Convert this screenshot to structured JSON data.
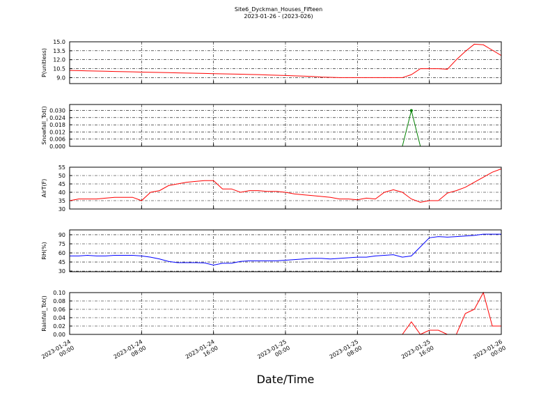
{
  "title": "Site6_Dyckman_Houses_Fifteen",
  "subtitle": "2023-01-26 - (2023-026)",
  "xlabel": "Date/Time",
  "chart_data": [
    {
      "type": "line",
      "ylabel": "P(unitless)",
      "color": "#ff0000",
      "x": [
        "2023-01-24 00:00",
        "2023-01-24 01:00",
        "2023-01-24 02:00",
        "2023-01-24 03:00",
        "2023-01-24 04:00",
        "2023-01-24 05:00",
        "2023-01-24 06:00",
        "2023-01-24 07:00",
        "2023-01-24 08:00",
        "2023-01-24 09:00",
        "2023-01-24 10:00",
        "2023-01-24 11:00",
        "2023-01-24 12:00",
        "2023-01-24 13:00",
        "2023-01-24 14:00",
        "2023-01-24 15:00",
        "2023-01-24 16:00",
        "2023-01-24 17:00",
        "2023-01-24 18:00",
        "2023-01-24 19:00",
        "2023-01-24 20:00",
        "2023-01-24 21:00",
        "2023-01-24 22:00",
        "2023-01-24 23:00",
        "2023-01-25 00:00",
        "2023-01-25 01:00",
        "2023-01-25 02:00",
        "2023-01-25 03:00",
        "2023-01-25 04:00",
        "2023-01-25 05:00",
        "2023-01-25 06:00",
        "2023-01-25 07:00",
        "2023-01-25 08:00",
        "2023-01-25 09:00",
        "2023-01-25 10:00",
        "2023-01-25 11:00",
        "2023-01-25 12:00",
        "2023-01-25 13:00",
        "2023-01-25 14:00",
        "2023-01-25 15:00",
        "2023-01-25 16:00",
        "2023-01-25 17:00",
        "2023-01-25 18:00",
        "2023-01-25 19:00",
        "2023-01-25 20:00",
        "2023-01-25 21:00",
        "2023-01-25 22:00",
        "2023-01-25 23:00",
        "2023-01-26 00:00"
      ],
      "values": [
        10.2,
        10.17,
        10.13,
        10.1,
        10.07,
        10.03,
        10.0,
        9.97,
        9.93,
        9.9,
        9.87,
        9.83,
        9.8,
        9.77,
        9.73,
        9.7,
        9.67,
        9.63,
        9.6,
        9.57,
        9.53,
        9.5,
        9.45,
        9.4,
        9.35,
        9.3,
        9.25,
        9.2,
        9.1,
        9.05,
        9.0,
        9.0,
        9.0,
        9.0,
        9.0,
        9.0,
        9.0,
        9.0,
        9.5,
        10.5,
        10.5,
        10.5,
        10.4,
        12.0,
        13.4,
        14.6,
        14.5,
        13.6,
        12.7
      ],
      "ylim": [
        8,
        15
      ],
      "yticks": [
        {
          "value": 9,
          "label": "9.0"
        },
        10.5,
        {
          "value": 12,
          "label": "12.0"
        },
        13.5,
        {
          "value": 15,
          "label": "15.0"
        }
      ],
      "xticks": [
        "2023-01-24 00:00",
        "2023-01-24 08:00",
        "2023-01-24 16:00",
        "2023-01-25 00:00",
        "2023-01-25 08:00",
        "2023-01-25 16:00",
        "2023-01-26 00:00"
      ],
      "grid": true
    },
    {
      "type": "line",
      "ylabel": "Snowfall_Tot()",
      "color": "#008000",
      "markers": true,
      "x": [
        "2023-01-24 00:00",
        "2023-01-24 01:00",
        "2023-01-24 02:00",
        "2023-01-24 03:00",
        "2023-01-24 04:00",
        "2023-01-24 05:00",
        "2023-01-24 06:00",
        "2023-01-24 07:00",
        "2023-01-24 08:00",
        "2023-01-24 09:00",
        "2023-01-24 10:00",
        "2023-01-24 11:00",
        "2023-01-24 12:00",
        "2023-01-24 13:00",
        "2023-01-24 14:00",
        "2023-01-24 15:00",
        "2023-01-24 16:00",
        "2023-01-24 17:00",
        "2023-01-24 18:00",
        "2023-01-24 19:00",
        "2023-01-24 20:00",
        "2023-01-24 21:00",
        "2023-01-24 22:00",
        "2023-01-24 23:00",
        "2023-01-25 00:00",
        "2023-01-25 01:00",
        "2023-01-25 02:00",
        "2023-01-25 03:00",
        "2023-01-25 04:00",
        "2023-01-25 05:00",
        "2023-01-25 06:00",
        "2023-01-25 07:00",
        "2023-01-25 08:00",
        "2023-01-25 09:00",
        "2023-01-25 10:00",
        "2023-01-25 11:00",
        "2023-01-25 12:00",
        "2023-01-25 13:00",
        "2023-01-25 14:00",
        "2023-01-25 15:00",
        "2023-01-25 16:00",
        "2023-01-25 17:00",
        "2023-01-25 18:00",
        "2023-01-25 19:00",
        "2023-01-25 20:00",
        "2023-01-25 21:00",
        "2023-01-25 22:00",
        "2023-01-25 23:00",
        "2023-01-26 00:00"
      ],
      "values": [
        0,
        0,
        0,
        0,
        0,
        0,
        0,
        0,
        0,
        0,
        0,
        0,
        0,
        0,
        0,
        0,
        0,
        0,
        0,
        0,
        0,
        0,
        0,
        0,
        0,
        0,
        0,
        0,
        0,
        0,
        0,
        0,
        0,
        0,
        0,
        0,
        0,
        0,
        0.03,
        0,
        0,
        0,
        0,
        0,
        0,
        0,
        0,
        0,
        0
      ],
      "ylim": [
        0,
        0.035
      ],
      "yticks": [
        {
          "value": 0,
          "label": "0.000"
        },
        {
          "value": 0.006,
          "label": "0.006"
        },
        {
          "value": 0.012,
          "label": "0.012"
        },
        {
          "value": 0.018,
          "label": "0.018"
        },
        {
          "value": 0.024,
          "label": "0.024"
        },
        {
          "value": 0.03,
          "label": "0.030"
        }
      ],
      "xticks": [
        "2023-01-24 00:00",
        "2023-01-24 08:00",
        "2023-01-24 16:00",
        "2023-01-25 00:00",
        "2023-01-25 08:00",
        "2023-01-25 16:00",
        "2023-01-26 00:00"
      ],
      "grid": true
    },
    {
      "type": "line",
      "ylabel": "AirT(F)",
      "color": "#ff0000",
      "x": [
        "2023-01-24 00:00",
        "2023-01-24 01:00",
        "2023-01-24 02:00",
        "2023-01-24 03:00",
        "2023-01-24 04:00",
        "2023-01-24 05:00",
        "2023-01-24 06:00",
        "2023-01-24 07:00",
        "2023-01-24 08:00",
        "2023-01-24 09:00",
        "2023-01-24 10:00",
        "2023-01-24 11:00",
        "2023-01-24 12:00",
        "2023-01-24 13:00",
        "2023-01-24 14:00",
        "2023-01-24 15:00",
        "2023-01-24 16:00",
        "2023-01-24 17:00",
        "2023-01-24 18:00",
        "2023-01-24 19:00",
        "2023-01-24 20:00",
        "2023-01-24 21:00",
        "2023-01-24 22:00",
        "2023-01-24 23:00",
        "2023-01-25 00:00",
        "2023-01-25 01:00",
        "2023-01-25 02:00",
        "2023-01-25 03:00",
        "2023-01-25 04:00",
        "2023-01-25 05:00",
        "2023-01-25 06:00",
        "2023-01-25 07:00",
        "2023-01-25 08:00",
        "2023-01-25 09:00",
        "2023-01-25 10:00",
        "2023-01-25 11:00",
        "2023-01-25 12:00",
        "2023-01-25 13:00",
        "2023-01-25 14:00",
        "2023-01-25 15:00",
        "2023-01-25 16:00",
        "2023-01-25 17:00",
        "2023-01-25 18:00",
        "2023-01-25 19:00",
        "2023-01-25 20:00",
        "2023-01-25 21:00",
        "2023-01-25 22:00",
        "2023-01-25 23:00",
        "2023-01-26 00:00"
      ],
      "values": [
        35,
        36,
        36,
        36,
        36.5,
        37,
        37,
        37,
        35,
        40,
        41,
        44,
        45,
        46,
        46.5,
        47,
        47,
        42,
        42,
        40,
        41,
        41,
        40.5,
        40.5,
        40,
        39,
        38.5,
        38,
        37.5,
        37,
        36,
        36,
        35.5,
        36.5,
        36,
        40,
        41.5,
        40,
        36,
        34,
        35,
        35,
        39.5,
        41,
        43,
        46,
        49,
        52,
        54
      ],
      "ylim": [
        30,
        55
      ],
      "yticks": [
        30,
        35,
        40,
        45,
        50,
        55
      ],
      "xticks": [
        "2023-01-24 00:00",
        "2023-01-24 08:00",
        "2023-01-24 16:00",
        "2023-01-25 00:00",
        "2023-01-25 08:00",
        "2023-01-25 16:00",
        "2023-01-26 00:00"
      ],
      "grid": true
    },
    {
      "type": "line",
      "ylabel": "RH(%)",
      "color": "#0000ff",
      "x": [
        "2023-01-24 00:00",
        "2023-01-24 01:00",
        "2023-01-24 02:00",
        "2023-01-24 03:00",
        "2023-01-24 04:00",
        "2023-01-24 05:00",
        "2023-01-24 06:00",
        "2023-01-24 07:00",
        "2023-01-24 08:00",
        "2023-01-24 09:00",
        "2023-01-24 10:00",
        "2023-01-24 11:00",
        "2023-01-24 12:00",
        "2023-01-24 13:00",
        "2023-01-24 14:00",
        "2023-01-24 15:00",
        "2023-01-24 16:00",
        "2023-01-24 17:00",
        "2023-01-24 18:00",
        "2023-01-24 19:00",
        "2023-01-24 20:00",
        "2023-01-24 21:00",
        "2023-01-24 22:00",
        "2023-01-24 23:00",
        "2023-01-25 00:00",
        "2023-01-25 01:00",
        "2023-01-25 02:00",
        "2023-01-25 03:00",
        "2023-01-25 04:00",
        "2023-01-25 05:00",
        "2023-01-25 06:00",
        "2023-01-25 07:00",
        "2023-01-25 08:00",
        "2023-01-25 09:00",
        "2023-01-25 10:00",
        "2023-01-25 11:00",
        "2023-01-25 12:00",
        "2023-01-25 13:00",
        "2023-01-25 14:00",
        "2023-01-25 15:00",
        "2023-01-25 16:00",
        "2023-01-25 17:00",
        "2023-01-25 18:00",
        "2023-01-25 19:00",
        "2023-01-25 20:00",
        "2023-01-25 21:00",
        "2023-01-25 22:00",
        "2023-01-25 23:00",
        "2023-01-26 00:00"
      ],
      "values": [
        55,
        55,
        56,
        55,
        55,
        56,
        56,
        56,
        55,
        53,
        50,
        46,
        44,
        44,
        44,
        43.5,
        40,
        43,
        43,
        46,
        47,
        47,
        47,
        47,
        48,
        49,
        50,
        51,
        51,
        50,
        51,
        52,
        53,
        53,
        55,
        56,
        57,
        53,
        55,
        70,
        85,
        87,
        86,
        87,
        88,
        89,
        91,
        91,
        91
      ],
      "ylim": [
        29,
        98
      ],
      "yticks": [
        30,
        45,
        60,
        75,
        90
      ],
      "xticks": [
        "2023-01-24 00:00",
        "2023-01-24 08:00",
        "2023-01-24 16:00",
        "2023-01-25 00:00",
        "2023-01-25 08:00",
        "2023-01-25 16:00",
        "2023-01-26 00:00"
      ],
      "grid": true
    },
    {
      "type": "line",
      "ylabel": "Rainfall_Tot()",
      "color": "#ff0000",
      "x": [
        "2023-01-24 00:00",
        "2023-01-24 01:00",
        "2023-01-24 02:00",
        "2023-01-24 03:00",
        "2023-01-24 04:00",
        "2023-01-24 05:00",
        "2023-01-24 06:00",
        "2023-01-24 07:00",
        "2023-01-24 08:00",
        "2023-01-24 09:00",
        "2023-01-24 10:00",
        "2023-01-24 11:00",
        "2023-01-24 12:00",
        "2023-01-24 13:00",
        "2023-01-24 14:00",
        "2023-01-24 15:00",
        "2023-01-24 16:00",
        "2023-01-24 17:00",
        "2023-01-24 18:00",
        "2023-01-24 19:00",
        "2023-01-24 20:00",
        "2023-01-24 21:00",
        "2023-01-24 22:00",
        "2023-01-24 23:00",
        "2023-01-25 00:00",
        "2023-01-25 01:00",
        "2023-01-25 02:00",
        "2023-01-25 03:00",
        "2023-01-25 04:00",
        "2023-01-25 05:00",
        "2023-01-25 06:00",
        "2023-01-25 07:00",
        "2023-01-25 08:00",
        "2023-01-25 09:00",
        "2023-01-25 10:00",
        "2023-01-25 11:00",
        "2023-01-25 12:00",
        "2023-01-25 13:00",
        "2023-01-25 14:00",
        "2023-01-25 15:00",
        "2023-01-25 16:00",
        "2023-01-25 17:00",
        "2023-01-25 18:00",
        "2023-01-25 19:00",
        "2023-01-25 20:00",
        "2023-01-25 21:00",
        "2023-01-25 22:00",
        "2023-01-25 23:00",
        "2023-01-26 00:00"
      ],
      "values": [
        0,
        0,
        0,
        0,
        0,
        0,
        0,
        0,
        0,
        0,
        0,
        0,
        0,
        0,
        0,
        0,
        0,
        0,
        0,
        0,
        0,
        0,
        0,
        0,
        0,
        0,
        0,
        0,
        0,
        0,
        0,
        0,
        0,
        0,
        0,
        0,
        0,
        0,
        0.03,
        0,
        0.01,
        0.01,
        0,
        0,
        0.05,
        0.06,
        0.1,
        0.02,
        0.02
      ],
      "ylim": [
        0,
        0.1
      ],
      "yticks": [
        {
          "value": 0,
          "label": "0.00"
        },
        {
          "value": 0.02,
          "label": "0.02"
        },
        {
          "value": 0.04,
          "label": "0.04"
        },
        {
          "value": 0.06,
          "label": "0.06"
        },
        {
          "value": 0.08,
          "label": "0.08"
        },
        {
          "value": 0.1,
          "label": "0.10"
        }
      ],
      "xticks": [
        "2023-01-24 00:00",
        "2023-01-24 08:00",
        "2023-01-24 16:00",
        "2023-01-25 00:00",
        "2023-01-25 08:00",
        "2023-01-25 16:00",
        "2023-01-26 00:00"
      ],
      "grid": true,
      "xticklabels": true
    }
  ]
}
